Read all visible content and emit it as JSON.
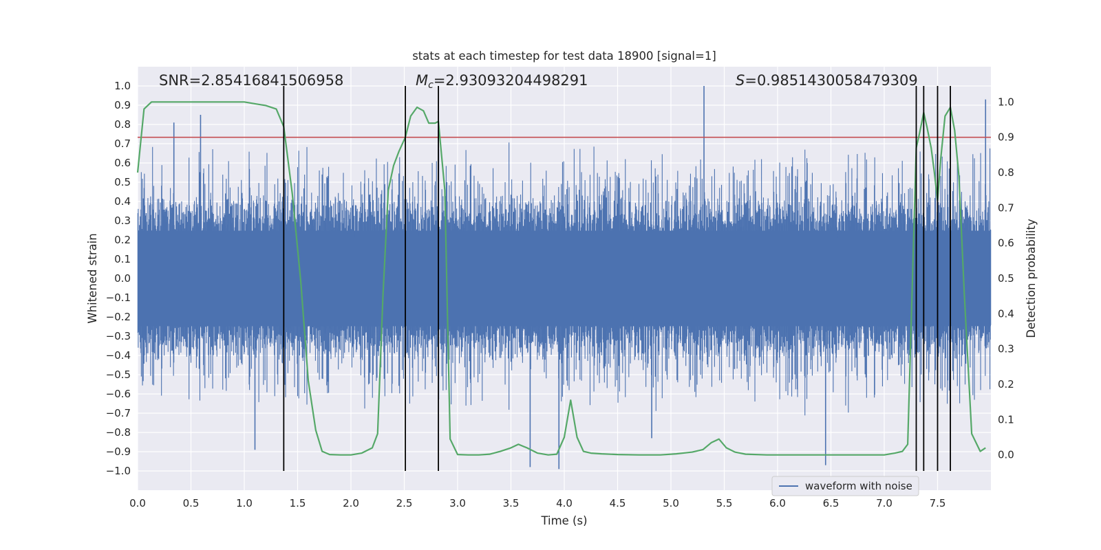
{
  "chart_data": {
    "type": "line",
    "title": "stats at each timestep for test data 18900 [signal=1]",
    "xlabel": "Time (s)",
    "ylabel": "Whitened strain",
    "y2label": "Detection probability",
    "xlim": [
      0,
      8
    ],
    "ylim": [
      -1.1,
      1.1
    ],
    "y2lim": [
      -0.1,
      1.1
    ],
    "x_ticks": [
      0.0,
      0.5,
      1.0,
      1.5,
      2.0,
      2.5,
      3.0,
      3.5,
      4.0,
      4.5,
      5.0,
      5.5,
      6.0,
      6.5,
      7.0,
      7.5
    ],
    "x_tick_labels": [
      "0.0",
      "0.5",
      "1.0",
      "1.5",
      "2.0",
      "2.5",
      "3.0",
      "3.5",
      "4.0",
      "4.5",
      "5.0",
      "5.5",
      "6.0",
      "6.5",
      "7.0",
      "7.5"
    ],
    "y_ticks": [
      1.0,
      0.9,
      0.8,
      0.7,
      0.6,
      0.5,
      0.4,
      0.3,
      0.2,
      0.1,
      0.0,
      -0.1,
      -0.2,
      -0.3,
      -0.4,
      -0.5,
      -0.6,
      -0.7,
      -0.8,
      -0.9,
      -1.0
    ],
    "y_tick_labels": [
      "1.0",
      "0.9",
      "0.8",
      "0.7",
      "0.6",
      "0.5",
      "0.4",
      "0.3",
      "0.2",
      "0.1",
      "0.0",
      "−0.1",
      "−0.2",
      "−0.3",
      "−0.4",
      "−0.5",
      "−0.6",
      "−0.7",
      "−0.8",
      "−0.9",
      "−1.0"
    ],
    "y2_ticks": [
      1.0,
      0.9,
      0.8,
      0.7,
      0.6,
      0.5,
      0.4,
      0.3,
      0.2,
      0.1,
      0.0
    ],
    "y2_tick_labels": [
      "1.0",
      "0.9",
      "0.8",
      "0.7",
      "0.6",
      "0.5",
      "0.4",
      "0.3",
      "0.2",
      "0.1",
      "0.0"
    ],
    "grid": true,
    "legend": {
      "placement": "lower-right",
      "entries": [
        "waveform with noise"
      ]
    },
    "annotations": {
      "snr": "SNR=2.85416841506958",
      "mc_symbol": "M",
      "mc_sub": "c",
      "mc_value": "=2.93093204498291",
      "s_symbol": "S",
      "s_value": "=0.9851430058479309"
    },
    "threshold": {
      "value": 0.9,
      "axis": "y2",
      "color": "#c44e52"
    },
    "event_lines_x": [
      1.37,
      2.51,
      2.82,
      7.3,
      7.37,
      7.5,
      7.62
    ],
    "waveform": {
      "name": "waveform with noise",
      "color": "#4c72b0",
      "core_envelope": 0.4,
      "notable_spikes": [
        {
          "x": 0.34,
          "y": 0.81
        },
        {
          "x": 0.59,
          "y": 0.85
        },
        {
          "x": 1.1,
          "y": -0.89
        },
        {
          "x": 1.37,
          "y": 0.69
        },
        {
          "x": 2.82,
          "y": 0.77
        },
        {
          "x": 3.68,
          "y": -0.98
        },
        {
          "x": 3.95,
          "y": -0.99
        },
        {
          "x": 4.82,
          "y": -0.83
        },
        {
          "x": 5.31,
          "y": 1.0
        },
        {
          "x": 6.45,
          "y": -0.97
        },
        {
          "x": 7.95,
          "y": 0.93
        }
      ]
    },
    "probability": {
      "name": "Detection probability",
      "color": "#55a868",
      "x": [
        0.0,
        0.06,
        0.13,
        0.25,
        0.5,
        0.75,
        1.0,
        1.1,
        1.2,
        1.3,
        1.37,
        1.45,
        1.53,
        1.6,
        1.67,
        1.73,
        1.8,
        1.9,
        2.0,
        2.1,
        2.2,
        2.25,
        2.3,
        2.35,
        2.4,
        2.45,
        2.51,
        2.56,
        2.62,
        2.68,
        2.73,
        2.79,
        2.82,
        2.88,
        2.93,
        3.0,
        3.1,
        3.2,
        3.3,
        3.4,
        3.5,
        3.57,
        3.65,
        3.75,
        3.85,
        3.93,
        4.0,
        4.06,
        4.12,
        4.18,
        4.25,
        4.35,
        4.5,
        4.7,
        4.9,
        5.05,
        5.2,
        5.3,
        5.38,
        5.45,
        5.52,
        5.6,
        5.7,
        5.9,
        6.2,
        6.5,
        6.8,
        7.0,
        7.1,
        7.17,
        7.22,
        7.26,
        7.3,
        7.33,
        7.37,
        7.4,
        7.44,
        7.47,
        7.5,
        7.53,
        7.57,
        7.62,
        7.66,
        7.7,
        7.75,
        7.82,
        7.9,
        7.95
      ],
      "y": [
        0.8,
        0.98,
        1.0,
        1.0,
        1.0,
        1.0,
        1.0,
        0.995,
        0.99,
        0.98,
        0.93,
        0.74,
        0.49,
        0.21,
        0.07,
        0.01,
        0.001,
        0.0,
        0.0,
        0.005,
        0.02,
        0.06,
        0.45,
        0.75,
        0.82,
        0.86,
        0.9,
        0.96,
        0.985,
        0.975,
        0.94,
        0.94,
        0.945,
        0.75,
        0.045,
        0.001,
        0.0,
        0.0,
        0.002,
        0.01,
        0.02,
        0.03,
        0.02,
        0.005,
        0.0,
        0.002,
        0.05,
        0.155,
        0.05,
        0.01,
        0.005,
        0.003,
        0.001,
        0.0,
        0.0,
        0.003,
        0.008,
        0.015,
        0.035,
        0.045,
        0.02,
        0.008,
        0.002,
        0.0,
        0.0,
        0.0,
        0.0,
        0.0,
        0.005,
        0.01,
        0.03,
        0.45,
        0.87,
        0.91,
        0.97,
        0.93,
        0.87,
        0.8,
        0.72,
        0.84,
        0.96,
        0.985,
        0.92,
        0.79,
        0.46,
        0.06,
        0.01,
        0.02
      ]
    }
  }
}
